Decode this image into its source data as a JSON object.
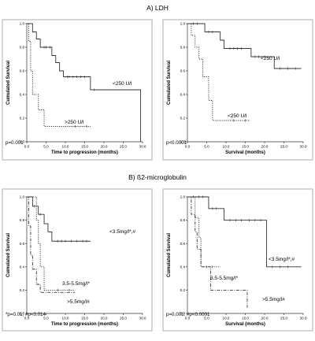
{
  "sections": [
    {
      "title": "A) LDH"
    },
    {
      "title": "B) ß2-microglobulin"
    }
  ],
  "chart_data": [
    {
      "type": "line",
      "chart_style": "kaplan-meier step",
      "xlabel": "Time to progression (months)",
      "ylabel": "Cumulated Survival",
      "xlim": [
        0,
        30
      ],
      "ylim": [
        0,
        1
      ],
      "xticks": [
        "0.0",
        "5.0",
        "10.0",
        "15.0",
        "20.0",
        "25.0",
        "30.0"
      ],
      "yticks": [
        "0.0",
        "0.2",
        "0.4",
        "0.6",
        "0.8",
        "1.0"
      ],
      "annotation": "p=0.001",
      "series": [
        {
          "label": "<250 U/l",
          "line_style": "solid",
          "points": [
            [
              0,
              1.0
            ],
            [
              1.5,
              0.93
            ],
            [
              2.5,
              0.87
            ],
            [
              3.5,
              0.8
            ],
            [
              6.5,
              0.73
            ],
            [
              7.5,
              0.67
            ],
            [
              8.5,
              0.6
            ],
            [
              9.5,
              0.55
            ],
            [
              16.5,
              0.44
            ],
            [
              29.5,
              0.0
            ]
          ],
          "censored": [
            [
              4.5,
              0.8
            ],
            [
              5,
              0.8
            ],
            [
              6,
              0.8
            ],
            [
              10.5,
              0.55
            ],
            [
              11,
              0.55
            ],
            [
              12,
              0.55
            ],
            [
              13,
              0.55
            ],
            [
              14,
              0.55
            ],
            [
              15,
              0.55
            ],
            [
              17.5,
              0.44
            ]
          ]
        },
        {
          "label": ">250 U/l",
          "line_style": "dotted",
          "points": [
            [
              0,
              1.0
            ],
            [
              0.5,
              0.85
            ],
            [
              1,
              0.6
            ],
            [
              1.5,
              0.4
            ],
            [
              3,
              0.27
            ],
            [
              4.5,
              0.13
            ],
            [
              16.5,
              0.13
            ]
          ],
          "censored": [
            [
              12.5,
              0.13
            ],
            [
              15.5,
              0.13
            ]
          ]
        }
      ]
    },
    {
      "type": "line",
      "chart_style": "kaplan-meier step",
      "xlabel": "Survival (months)",
      "ylabel": "Cumulated Survival",
      "xlim": [
        0,
        30
      ],
      "ylim": [
        0,
        1
      ],
      "xticks": [
        "0.0",
        "5.0",
        "10.0",
        "15.0",
        "20.0",
        "25.0",
        "30.0"
      ],
      "yticks": [
        "0.0",
        "0.2",
        "0.4",
        "0.6",
        "0.8",
        "1.0"
      ],
      "annotation": "p<0.0001",
      "series": [
        {
          "label": "<250 U/l",
          "line_style": "solid",
          "points": [
            [
              0,
              1.0
            ],
            [
              4.5,
              0.93
            ],
            [
              8.5,
              0.86
            ],
            [
              9.5,
              0.79
            ],
            [
              16.5,
              0.72
            ],
            [
              22.5,
              0.62
            ],
            [
              29.5,
              0.62
            ]
          ],
          "censored": [
            [
              1.5,
              1.0
            ],
            [
              2.5,
              1.0
            ],
            [
              5.5,
              0.93
            ],
            [
              6.5,
              0.93
            ],
            [
              11,
              0.79
            ],
            [
              12,
              0.79
            ],
            [
              13,
              0.79
            ],
            [
              14,
              0.79
            ],
            [
              17.5,
              0.72
            ],
            [
              18.5,
              0.72
            ],
            [
              20,
              0.72
            ],
            [
              24,
              0.62
            ],
            [
              26,
              0.62
            ],
            [
              28,
              0.62
            ]
          ]
        },
        {
          "label": "<250 U/l",
          "line_style": "dotted",
          "points": [
            [
              0,
              1.0
            ],
            [
              1,
              0.9
            ],
            [
              2,
              0.8
            ],
            [
              3,
              0.7
            ],
            [
              4,
              0.55
            ],
            [
              5.5,
              0.35
            ],
            [
              6.5,
              0.18
            ],
            [
              16,
              0.18
            ]
          ],
          "censored": [
            [
              12,
              0.18
            ],
            [
              15,
              0.18
            ]
          ]
        }
      ]
    },
    {
      "type": "line",
      "chart_style": "kaplan-meier step",
      "xlabel": "Time to progression (months)",
      "ylabel": "Cumulated Survival",
      "xlim": [
        0,
        30
      ],
      "ylim": [
        0,
        1
      ],
      "xticks": [
        "0.0",
        "5.0",
        "10.0",
        "15.0",
        "20.0",
        "25.0",
        "30.0"
      ],
      "yticks": [
        "0.0",
        "0.2",
        "0.4",
        "0.6",
        "0.8",
        "1.0"
      ],
      "annotation": "*p=0.01; #p<0.014",
      "series": [
        {
          "label": "<3.5mg/l*,#",
          "line_style": "solid",
          "points": [
            [
              0,
              1.0
            ],
            [
              1.5,
              0.92
            ],
            [
              3,
              0.85
            ],
            [
              4.5,
              0.77
            ],
            [
              5.5,
              0.7
            ],
            [
              6.5,
              0.62
            ],
            [
              16.5,
              0.62
            ]
          ],
          "censored": [
            [
              2,
              0.92
            ],
            [
              3.5,
              0.85
            ],
            [
              8,
              0.62
            ],
            [
              9,
              0.62
            ],
            [
              10,
              0.62
            ],
            [
              11.5,
              0.62
            ],
            [
              13,
              0.62
            ],
            [
              14.5,
              0.62
            ],
            [
              15.5,
              0.62
            ]
          ]
        },
        {
          "label": "3.5-5.5mg/l*",
          "line_style": "dotted",
          "points": [
            [
              0,
              1.0
            ],
            [
              2.5,
              0.8
            ],
            [
              3,
              0.6
            ],
            [
              3.5,
              0.4
            ],
            [
              4.5,
              0.2
            ],
            [
              12.5,
              0.2
            ]
          ],
          "censored": [
            [
              8,
              0.2
            ],
            [
              11,
              0.2
            ]
          ]
        },
        {
          "label": ">5.5mg/l#",
          "line_style": "dash-dot",
          "points": [
            [
              0,
              1.0
            ],
            [
              0.5,
              0.75
            ],
            [
              1,
              0.5
            ],
            [
              1.5,
              0.38
            ],
            [
              2.5,
              0.25
            ],
            [
              3.5,
              0.18
            ],
            [
              12.5,
              0.18
            ]
          ],
          "censored": []
        }
      ]
    },
    {
      "type": "line",
      "chart_style": "kaplan-meier step",
      "xlabel": "Survival (months)",
      "ylabel": "Cumulated Survival",
      "xlim": [
        0,
        30
      ],
      "ylim": [
        0,
        1
      ],
      "xticks": [
        "0.0",
        "5.0",
        "10.0",
        "15.0",
        "20.0",
        "25.0",
        "30.0"
      ],
      "yticks": [
        "0.0",
        "0.2",
        "0.4",
        "0.6",
        "0.8",
        "1.0"
      ],
      "annotation": "p=0.001; #p<0.0001",
      "series": [
        {
          "label": "<3.5mg/l*,#",
          "line_style": "solid",
          "points": [
            [
              0,
              1.0
            ],
            [
              5.5,
              0.9
            ],
            [
              9.5,
              0.8
            ],
            [
              20.5,
              0.4
            ],
            [
              29.5,
              0.4
            ]
          ],
          "censored": [
            [
              1.5,
              1.0
            ],
            [
              3,
              1.0
            ],
            [
              4,
              1.0
            ],
            [
              6.5,
              0.9
            ],
            [
              7.5,
              0.9
            ],
            [
              11,
              0.8
            ],
            [
              12.5,
              0.8
            ],
            [
              14,
              0.8
            ],
            [
              16,
              0.8
            ],
            [
              17.5,
              0.8
            ],
            [
              19,
              0.8
            ],
            [
              22,
              0.4
            ],
            [
              24,
              0.4
            ],
            [
              26,
              0.4
            ]
          ]
        },
        {
          "label": "3.5-5.5mg/l*",
          "line_style": "dotted",
          "points": [
            [
              0,
              1.0
            ],
            [
              2,
              0.82
            ],
            [
              3,
              0.65
            ],
            [
              3.5,
              0.4
            ],
            [
              8.5,
              0.4
            ]
          ],
          "censored": [
            [
              5,
              0.4
            ],
            [
              6.5,
              0.4
            ]
          ]
        },
        {
          "label": ">5.5mg/l#",
          "line_style": "dash-dot",
          "points": [
            [
              0,
              1.0
            ],
            [
              1,
              0.85
            ],
            [
              2,
              0.7
            ],
            [
              2.5,
              0.55
            ],
            [
              3.5,
              0.4
            ],
            [
              6,
              0.2
            ],
            [
              15.5,
              0.2
            ],
            [
              15.5,
              0.05
            ]
          ],
          "censored": []
        }
      ]
    }
  ]
}
